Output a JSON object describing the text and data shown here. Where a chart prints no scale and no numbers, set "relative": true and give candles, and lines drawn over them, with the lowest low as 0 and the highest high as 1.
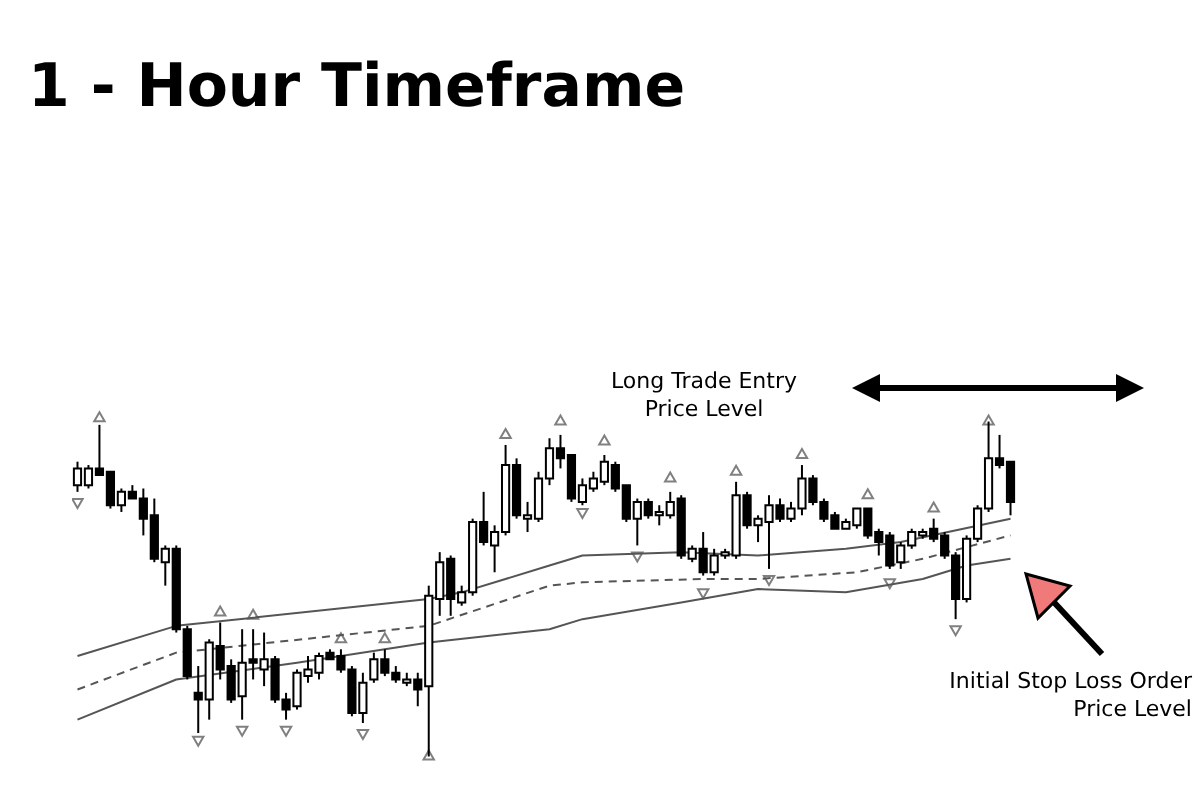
{
  "chart_data": {
    "type": "candlestick",
    "title": "1 - Hour Timeframe",
    "relative": true,
    "tick_labels": false,
    "colors": [
      "#ffffff",
      "#ffffff",
      "#000000",
      "#000000",
      "#ffffff",
      "#000000",
      "#000000",
      "#000000",
      "#ffffff",
      "#000000",
      "#000000",
      "#000000",
      "#ffffff",
      "#000000",
      "#000000",
      "#ffffff",
      "#000000",
      "#ffffff",
      "#000000",
      "#000000",
      "#ffffff",
      "#ffffff",
      "#ffffff",
      "#000000",
      "#000000",
      "#000000",
      "#ffffff",
      "#ffffff",
      "#000000",
      "#000000",
      "#ffffff",
      "#000000",
      "#ffffff",
      "#ffffff",
      "#000000",
      "#ffffff",
      "#ffffff",
      "#000000",
      "#ffffff",
      "#ffffff",
      "#000000",
      "#ffffff",
      "#ffffff",
      "#ffffff",
      "#000000",
      "#000000",
      "#ffffff",
      "#ffffff",
      "#ffffff",
      "#000000",
      "#000000",
      "#ffffff",
      "#000000",
      "#ffffff",
      "#ffffff",
      "#000000",
      "#ffffff",
      "#000000",
      "#ffffff",
      "#ffffff",
      "#ffffff",
      "#000000",
      "#ffffff",
      "#ffffff",
      "#000000",
      "#ffffff",
      "#ffffff",
      "#000000",
      "#000000",
      "#000000",
      "#ffffff",
      "#ffffff",
      "#000000",
      "#000000",
      "#000000",
      "#ffffff",
      "#ffffff",
      "#ffffff",
      "#000000",
      "#000000",
      "#000000",
      "#ffffff",
      "#ffffff",
      "#ffffff",
      "#000000",
      "#000000"
    ],
    "categories": [
      null,
      null,
      null,
      null,
      null,
      null,
      null,
      null,
      null,
      null,
      null,
      null,
      null,
      null,
      null,
      null,
      null,
      null,
      null,
      null,
      null,
      null,
      null,
      null,
      null,
      null,
      null,
      null,
      null,
      null,
      null,
      null,
      null,
      null,
      null,
      null,
      null,
      null,
      null,
      null,
      null,
      null,
      null,
      null,
      null,
      null,
      null,
      null,
      null,
      null,
      null,
      null,
      null,
      null,
      null,
      null,
      null,
      null,
      null,
      null,
      null,
      null,
      null,
      null,
      null,
      null,
      null,
      null,
      null,
      null,
      null,
      null,
      null,
      null,
      null,
      null,
      null,
      null,
      null,
      null,
      null,
      null,
      null,
      null,
      null,
      null
    ],
    "ohlc": [
      [
        0.81,
        0.88,
        0.79,
        0.86
      ],
      [
        0.81,
        0.87,
        0.8,
        0.86
      ],
      [
        0.86,
        0.99,
        0.84,
        0.84
      ],
      [
        0.85,
        0.85,
        0.74,
        0.75
      ],
      [
        0.75,
        0.8,
        0.73,
        0.79
      ],
      [
        0.79,
        0.81,
        0.77,
        0.77
      ],
      [
        0.77,
        0.8,
        0.66,
        0.71
      ],
      [
        0.72,
        0.77,
        0.58,
        0.59
      ],
      [
        0.58,
        0.63,
        0.51,
        0.62
      ],
      [
        0.62,
        0.63,
        0.37,
        0.38
      ],
      [
        0.38,
        0.39,
        0.23,
        0.24
      ],
      [
        0.19,
        0.27,
        0.07,
        0.17
      ],
      [
        0.17,
        0.35,
        0.11,
        0.34
      ],
      [
        0.33,
        0.4,
        0.23,
        0.26
      ],
      [
        0.27,
        0.29,
        0.16,
        0.17
      ],
      [
        0.18,
        0.38,
        0.11,
        0.28
      ],
      [
        0.29,
        0.38,
        0.23,
        0.28
      ],
      [
        0.26,
        0.37,
        0.21,
        0.29
      ],
      [
        0.29,
        0.3,
        0.16,
        0.17
      ],
      [
        0.17,
        0.19,
        0.11,
        0.14
      ],
      [
        0.15,
        0.26,
        0.14,
        0.25
      ],
      [
        0.24,
        0.3,
        0.22,
        0.26
      ],
      [
        0.25,
        0.31,
        0.23,
        0.3
      ],
      [
        0.31,
        0.32,
        0.29,
        0.29
      ],
      [
        0.3,
        0.32,
        0.25,
        0.26
      ],
      [
        0.26,
        0.27,
        0.12,
        0.13
      ],
      [
        0.13,
        0.25,
        0.1,
        0.22
      ],
      [
        0.23,
        0.31,
        0.22,
        0.29
      ],
      [
        0.29,
        0.32,
        0.24,
        0.25
      ],
      [
        0.25,
        0.27,
        0.22,
        0.23
      ],
      [
        0.22,
        0.25,
        0.21,
        0.23
      ],
      [
        0.23,
        0.25,
        0.15,
        0.2
      ],
      [
        0.21,
        0.51,
        0.0,
        0.48
      ],
      [
        0.47,
        0.61,
        0.42,
        0.58
      ],
      [
        0.59,
        0.6,
        0.42,
        0.47
      ],
      [
        0.46,
        0.51,
        0.45,
        0.49
      ],
      [
        0.49,
        0.71,
        0.48,
        0.7
      ],
      [
        0.7,
        0.79,
        0.63,
        0.64
      ],
      [
        0.63,
        0.69,
        0.55,
        0.67
      ],
      [
        0.67,
        0.93,
        0.66,
        0.87
      ],
      [
        0.87,
        0.89,
        0.71,
        0.72
      ],
      [
        0.71,
        0.76,
        0.67,
        0.72
      ],
      [
        0.71,
        0.85,
        0.7,
        0.83
      ],
      [
        0.83,
        0.95,
        0.81,
        0.92
      ],
      [
        0.92,
        0.96,
        0.86,
        0.89
      ],
      [
        0.9,
        0.9,
        0.76,
        0.77
      ],
      [
        0.76,
        0.83,
        0.75,
        0.81
      ],
      [
        0.8,
        0.85,
        0.79,
        0.83
      ],
      [
        0.82,
        0.9,
        0.81,
        0.88
      ],
      [
        0.87,
        0.88,
        0.79,
        0.8
      ],
      [
        0.81,
        0.81,
        0.7,
        0.71
      ],
      [
        0.71,
        0.77,
        0.63,
        0.76
      ],
      [
        0.76,
        0.77,
        0.71,
        0.72
      ],
      [
        0.72,
        0.75,
        0.69,
        0.73
      ],
      [
        0.72,
        0.79,
        0.71,
        0.76
      ],
      [
        0.77,
        0.78,
        0.59,
        0.6
      ],
      [
        0.59,
        0.63,
        0.58,
        0.62
      ],
      [
        0.62,
        0.67,
        0.54,
        0.55
      ],
      [
        0.55,
        0.62,
        0.54,
        0.6
      ],
      [
        0.6,
        0.62,
        0.59,
        0.61
      ],
      [
        0.6,
        0.82,
        0.59,
        0.78
      ],
      [
        0.78,
        0.79,
        0.68,
        0.69
      ],
      [
        0.69,
        0.72,
        0.64,
        0.71
      ],
      [
        0.7,
        0.78,
        0.56,
        0.75
      ],
      [
        0.75,
        0.77,
        0.7,
        0.71
      ],
      [
        0.71,
        0.76,
        0.7,
        0.74
      ],
      [
        0.74,
        0.87,
        0.72,
        0.83
      ],
      [
        0.83,
        0.84,
        0.75,
        0.76
      ],
      [
        0.76,
        0.77,
        0.7,
        0.71
      ],
      [
        0.72,
        0.73,
        0.68,
        0.68
      ],
      [
        0.68,
        0.71,
        0.68,
        0.7
      ],
      [
        0.69,
        0.74,
        0.68,
        0.74
      ],
      [
        0.74,
        0.74,
        0.65,
        0.66
      ],
      [
        0.67,
        0.68,
        0.6,
        0.64
      ],
      [
        0.66,
        0.67,
        0.56,
        0.57
      ],
      [
        0.58,
        0.64,
        0.56,
        0.63
      ],
      [
        0.63,
        0.68,
        0.62,
        0.67
      ],
      [
        0.66,
        0.68,
        0.65,
        0.67
      ],
      [
        0.68,
        0.71,
        0.64,
        0.65
      ],
      [
        0.66,
        0.67,
        0.59,
        0.6
      ],
      [
        0.6,
        0.61,
        0.41,
        0.47
      ],
      [
        0.47,
        0.66,
        0.46,
        0.65
      ],
      [
        0.65,
        0.75,
        0.64,
        0.74
      ],
      [
        0.74,
        1.0,
        0.73,
        0.89
      ],
      [
        0.89,
        0.96,
        0.86,
        0.87
      ],
      [
        0.88,
        0.88,
        0.72,
        0.76
      ]
    ],
    "series": [
      {
        "type": "line",
        "color": "#555555",
        "line_style": "solid",
        "values": [
          0.3,
          null,
          null,
          null,
          null,
          null,
          null,
          null,
          null,
          0.39,
          null,
          null,
          null,
          null,
          null,
          null,
          null,
          null,
          null,
          null,
          null,
          null,
          null,
          null,
          null,
          null,
          null,
          null,
          null,
          null,
          null,
          null,
          0.47,
          null,
          null,
          0.49,
          null,
          null,
          null,
          null,
          null,
          null,
          null,
          0.57,
          null,
          null,
          0.6,
          null,
          null,
          null,
          null,
          null,
          null,
          null,
          null,
          0.61,
          null,
          null,
          null,
          null,
          null,
          null,
          0.6,
          null,
          null,
          null,
          null,
          null,
          null,
          null,
          0.62,
          null,
          null,
          null,
          null,
          0.64,
          null,
          null,
          null,
          null,
          null,
          null,
          null,
          null,
          null,
          0.71
        ]
      },
      {
        "type": "line",
        "color": "#555555",
        "line_style": "dashed",
        "values": [
          0.2,
          null,
          null,
          null,
          null,
          null,
          null,
          null,
          null,
          0.31,
          null,
          null,
          null,
          null,
          null,
          null,
          null,
          null,
          null,
          null,
          null,
          null,
          null,
          null,
          null,
          null,
          null,
          null,
          null,
          null,
          null,
          null,
          0.39,
          null,
          null,
          null,
          null,
          null,
          null,
          null,
          null,
          null,
          null,
          0.51,
          null,
          null,
          0.52,
          null,
          null,
          null,
          null,
          null,
          null,
          null,
          null,
          null,
          null,
          0.53,
          null,
          null,
          null,
          null,
          0.53,
          null,
          null,
          null,
          null,
          null,
          null,
          null,
          null,
          0.55,
          null,
          null,
          null,
          null,
          null,
          0.59,
          null,
          null,
          null,
          null,
          null,
          null,
          null,
          0.66
        ]
      },
      {
        "type": "line",
        "color": "#555555",
        "line_style": "solid",
        "values": [
          0.11,
          null,
          null,
          null,
          null,
          null,
          null,
          null,
          null,
          0.23,
          null,
          null,
          null,
          null,
          null,
          null,
          null,
          null,
          null,
          null,
          0.28,
          null,
          null,
          null,
          null,
          null,
          null,
          null,
          null,
          null,
          null,
          null,
          0.34,
          null,
          null,
          null,
          null,
          null,
          null,
          null,
          null,
          null,
          null,
          0.38,
          null,
          null,
          0.41,
          null,
          null,
          null,
          null,
          null,
          null,
          null,
          null,
          0.46,
          null,
          null,
          null,
          null,
          null,
          null,
          0.5,
          null,
          null,
          null,
          null,
          null,
          null,
          null,
          0.49,
          null,
          null,
          null,
          null,
          null,
          null,
          0.53,
          null,
          null,
          null,
          0.57,
          null,
          null,
          null,
          0.59
        ]
      },
      {
        "type": "scatter",
        "color": "#808080",
        "marker": "triangle",
        "values": [
          null,
          null,
          1.01,
          null,
          null,
          null,
          null,
          null,
          null,
          null,
          null,
          null,
          null,
          0.43,
          null,
          null,
          0.42,
          null,
          null,
          null,
          null,
          null,
          null,
          null,
          0.35,
          null,
          null,
          null,
          0.35,
          null,
          null,
          null,
          null,
          null,
          null,
          null,
          null,
          null,
          null,
          0.96,
          null,
          null,
          null,
          null,
          1.0,
          null,
          null,
          null,
          0.94,
          null,
          null,
          null,
          null,
          null,
          0.83,
          null,
          null,
          null,
          null,
          null,
          0.85,
          null,
          null,
          null,
          null,
          null,
          0.9,
          null,
          null,
          null,
          null,
          null,
          0.78,
          null,
          null,
          null,
          null,
          null,
          0.74,
          null,
          null,
          null,
          null,
          1.0,
          null,
          null
        ]
      },
      {
        "type": "scatter",
        "color": "#808080",
        "marker": "triangle",
        "values": [
          0.76,
          null,
          null,
          null,
          null,
          null,
          null,
          null,
          null,
          null,
          null,
          0.05,
          null,
          null,
          null,
          0.08,
          null,
          null,
          null,
          0.08,
          null,
          null,
          null,
          null,
          null,
          null,
          0.07,
          null,
          null,
          null,
          null,
          null,
          0.0,
          null,
          null,
          null,
          null,
          null,
          null,
          null,
          null,
          null,
          null,
          null,
          null,
          null,
          0.73,
          null,
          null,
          null,
          null,
          0.6,
          null,
          null,
          null,
          null,
          null,
          0.49,
          null,
          null,
          null,
          null,
          null,
          0.53,
          null,
          null,
          null,
          null,
          null,
          null,
          null,
          null,
          null,
          null,
          0.52,
          null,
          null,
          null,
          null,
          null,
          0.38,
          null,
          null,
          null,
          null,
          null
        ]
      }
    ],
    "annotations": [
      "Long Trade Entry Price Level",
      "Initial Stop Loss Order Price Level"
    ]
  }
}
